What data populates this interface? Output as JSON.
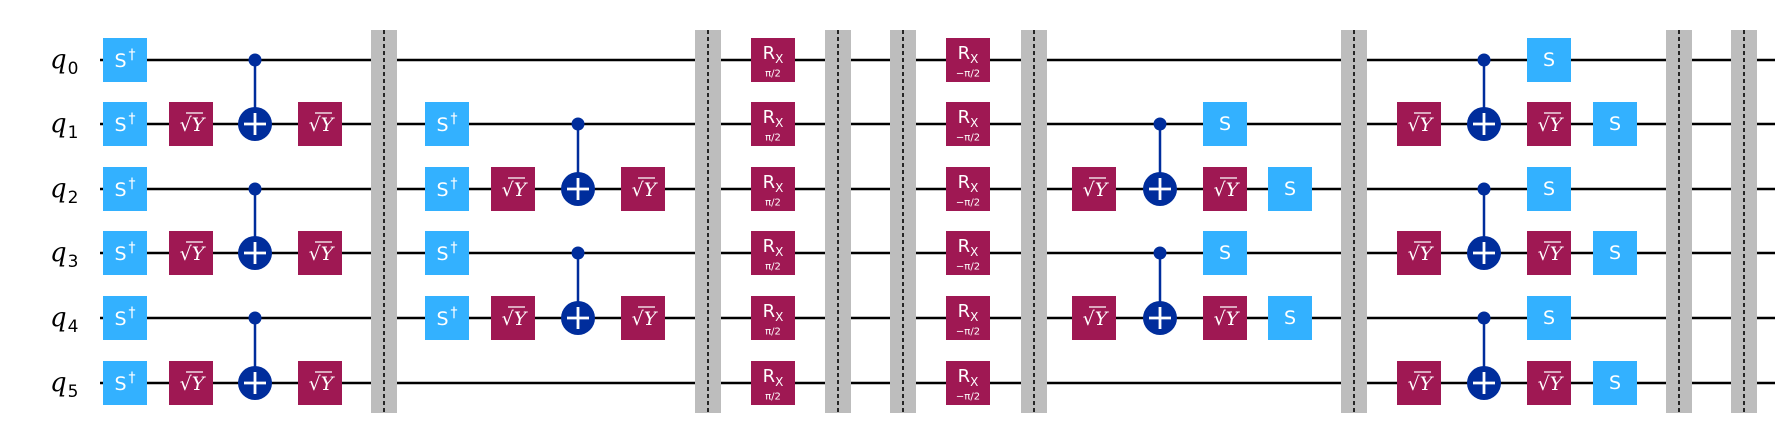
{
  "colors": {
    "wire": "#000000",
    "s_gate": "#33B1FF",
    "sy_gate": "#9F1853",
    "rx_gate": "#9F1853",
    "cx": "#002D9C",
    "barrier": "#BDBDBD",
    "gate_text": "#FFFFFF"
  },
  "qubits": [
    {
      "base": "q",
      "index": "0"
    },
    {
      "base": "q",
      "index": "1"
    },
    {
      "base": "q",
      "index": "2"
    },
    {
      "base": "q",
      "index": "3"
    },
    {
      "base": "q",
      "index": "4"
    },
    {
      "base": "q",
      "index": "5"
    }
  ],
  "labels": {
    "sdg": "S",
    "sdg_sup": "†",
    "s": "S",
    "sy_root": "√",
    "sy_arg": "Y",
    "rx_main": "R",
    "rx_sub": "X",
    "rx_param_pos": "π/2",
    "rx_param_neg": "−π/2"
  },
  "circuit": [
    {
      "col": 0,
      "type": "sdg",
      "qubits": [
        0
      ]
    },
    {
      "col": 0,
      "type": "sdg",
      "qubits": [
        1
      ]
    },
    {
      "col": 0,
      "type": "sdg",
      "qubits": [
        2
      ]
    },
    {
      "col": 0,
      "type": "sdg",
      "qubits": [
        3
      ]
    },
    {
      "col": 0,
      "type": "sdg",
      "qubits": [
        4
      ]
    },
    {
      "col": 0,
      "type": "sdg",
      "qubits": [
        5
      ]
    },
    {
      "col": 1,
      "type": "sy",
      "qubits": [
        1
      ]
    },
    {
      "col": 1,
      "type": "sy",
      "qubits": [
        3
      ]
    },
    {
      "col": 1,
      "type": "sy",
      "qubits": [
        5
      ]
    },
    {
      "col": 2,
      "type": "cx",
      "control": 0,
      "target": 1
    },
    {
      "col": 2,
      "type": "cx",
      "control": 2,
      "target": 3
    },
    {
      "col": 2,
      "type": "cx",
      "control": 4,
      "target": 5
    },
    {
      "col": 3,
      "type": "sy",
      "qubits": [
        1
      ]
    },
    {
      "col": 3,
      "type": "sy",
      "qubits": [
        3
      ]
    },
    {
      "col": 3,
      "type": "sy",
      "qubits": [
        5
      ]
    },
    {
      "col": 4,
      "type": "barrier"
    },
    {
      "col": 5,
      "type": "sdg",
      "qubits": [
        1
      ]
    },
    {
      "col": 5,
      "type": "sdg",
      "qubits": [
        2
      ]
    },
    {
      "col": 5,
      "type": "sdg",
      "qubits": [
        3
      ]
    },
    {
      "col": 5,
      "type": "sdg",
      "qubits": [
        4
      ]
    },
    {
      "col": 6,
      "type": "sy",
      "qubits": [
        2
      ]
    },
    {
      "col": 6,
      "type": "sy",
      "qubits": [
        4
      ]
    },
    {
      "col": 7,
      "type": "cx",
      "control": 1,
      "target": 2
    },
    {
      "col": 7,
      "type": "cx",
      "control": 3,
      "target": 4
    },
    {
      "col": 8,
      "type": "sy",
      "qubits": [
        2
      ]
    },
    {
      "col": 8,
      "type": "sy",
      "qubits": [
        4
      ]
    },
    {
      "col": 9,
      "type": "barrier"
    },
    {
      "col": 10,
      "type": "rx",
      "param": "pos",
      "qubits": [
        0,
        1,
        2,
        3,
        4,
        5
      ]
    },
    {
      "col": 11,
      "type": "barrier"
    },
    {
      "col": 12,
      "type": "barrier"
    },
    {
      "col": 13,
      "type": "rx",
      "param": "neg",
      "qubits": [
        0,
        1,
        2,
        3,
        4,
        5
      ]
    },
    {
      "col": 14,
      "type": "barrier"
    },
    {
      "col": 15,
      "type": "sy",
      "qubits": [
        2
      ]
    },
    {
      "col": 15,
      "type": "sy",
      "qubits": [
        4
      ]
    },
    {
      "col": 16,
      "type": "cx",
      "control": 1,
      "target": 2
    },
    {
      "col": 16,
      "type": "cx",
      "control": 3,
      "target": 4
    },
    {
      "col": 17,
      "type": "s",
      "qubits": [
        1
      ]
    },
    {
      "col": 17,
      "type": "sy",
      "qubits": [
        2
      ]
    },
    {
      "col": 17,
      "type": "s",
      "qubits": [
        3
      ]
    },
    {
      "col": 17,
      "type": "sy",
      "qubits": [
        4
      ]
    },
    {
      "col": 18,
      "type": "s",
      "qubits": [
        2
      ]
    },
    {
      "col": 18,
      "type": "s",
      "qubits": [
        4
      ]
    },
    {
      "col": 19,
      "type": "barrier"
    },
    {
      "col": 20,
      "type": "sy",
      "qubits": [
        1
      ]
    },
    {
      "col": 20,
      "type": "sy",
      "qubits": [
        3
      ]
    },
    {
      "col": 20,
      "type": "sy",
      "qubits": [
        5
      ]
    },
    {
      "col": 21,
      "type": "cx",
      "control": 0,
      "target": 1
    },
    {
      "col": 21,
      "type": "cx",
      "control": 2,
      "target": 3
    },
    {
      "col": 21,
      "type": "cx",
      "control": 4,
      "target": 5
    },
    {
      "col": 22,
      "type": "s",
      "qubits": [
        0
      ]
    },
    {
      "col": 22,
      "type": "sy",
      "qubits": [
        1
      ]
    },
    {
      "col": 22,
      "type": "s",
      "qubits": [
        2
      ]
    },
    {
      "col": 22,
      "type": "sy",
      "qubits": [
        3
      ]
    },
    {
      "col": 22,
      "type": "s",
      "qubits": [
        4
      ]
    },
    {
      "col": 22,
      "type": "sy",
      "qubits": [
        5
      ]
    },
    {
      "col": 23,
      "type": "s",
      "qubits": [
        1
      ]
    },
    {
      "col": 23,
      "type": "s",
      "qubits": [
        3
      ]
    },
    {
      "col": 23,
      "type": "s",
      "qubits": [
        5
      ]
    },
    {
      "col": 24,
      "type": "barrier"
    },
    {
      "col": 25,
      "type": "barrier"
    }
  ]
}
